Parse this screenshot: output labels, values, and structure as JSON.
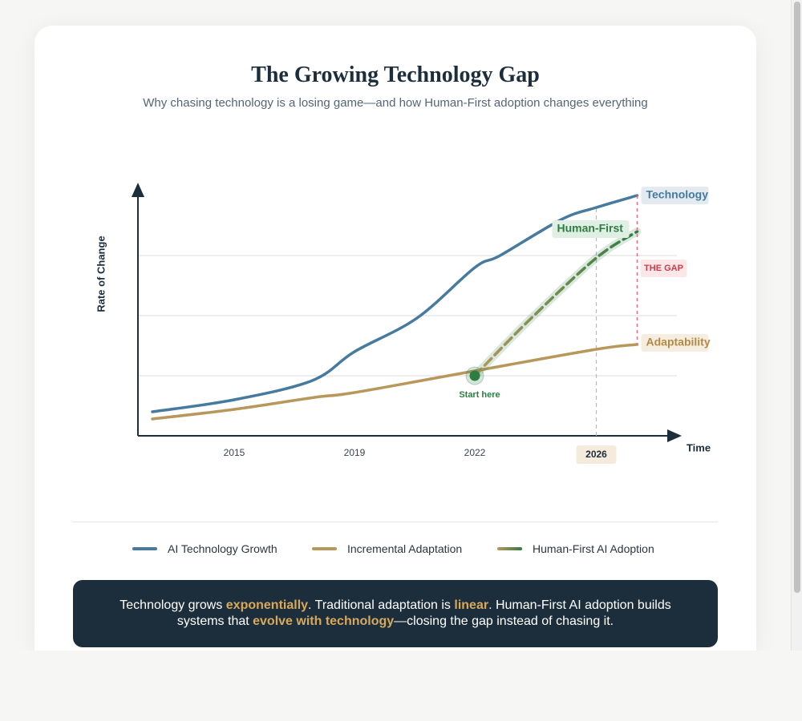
{
  "chart_data": {
    "type": "line",
    "title": "The Growing Technology Gap",
    "subtitle": "Why chasing technology is a losing game—and how Human-First adoption changes everything",
    "y_label": "Rate of Change",
    "x_label": "Time",
    "xlim": [
      0.2,
      4.7
    ],
    "xticks": [
      {
        "value": 1,
        "label": "2015"
      },
      {
        "value": 2,
        "label": "2019"
      },
      {
        "value": 3,
        "label": "2022"
      },
      {
        "value": 4.01,
        "label": "2026"
      }
    ],
    "ylim": [
      0,
      100
    ],
    "yticks": [
      25,
      50,
      75
    ],
    "grid": true,
    "series": [
      {
        "name": "AI Technology Growth",
        "end_label": "Technology",
        "color": "#467a9e",
        "x": [
          0.32,
          1.0,
          1.65,
          2.0,
          2.52,
          3.0,
          3.21,
          3.72,
          4.01,
          4.35
        ],
        "values": [
          10,
          15,
          23,
          35,
          49,
          70,
          75,
          90,
          95,
          100
        ]
      },
      {
        "name": "Incremental Adaptation",
        "end_label": "Adaptability",
        "color": "#b8975a",
        "x": [
          0.32,
          1.0,
          1.67,
          2.0,
          3.0,
          4.01,
          4.35
        ],
        "values": [
          7,
          11,
          16,
          18,
          27,
          36,
          38
        ]
      },
      {
        "name": "Human-First AI Adoption",
        "end_label": "Human-First",
        "color": "#2e7d43",
        "x": [
          3.0,
          3.45,
          4.01,
          4.35
        ],
        "values": [
          25,
          48,
          74,
          85
        ]
      }
    ],
    "annotations": {
      "start": "Start here",
      "gap": "THE GAP"
    }
  },
  "footer": {
    "parts": [
      {
        "text": "Technology grows ",
        "emphasis": false
      },
      {
        "text": "exponentially",
        "emphasis": true
      },
      {
        "text": ". Traditional adaptation is ",
        "emphasis": false
      },
      {
        "text": "linear",
        "emphasis": true
      },
      {
        "text": ". Human-First AI adoption builds systems that ",
        "emphasis": false
      },
      {
        "text": "evolve with technology",
        "emphasis": true
      },
      {
        "text": "—closing the gap instead of chasing it.",
        "emphasis": false
      }
    ]
  }
}
